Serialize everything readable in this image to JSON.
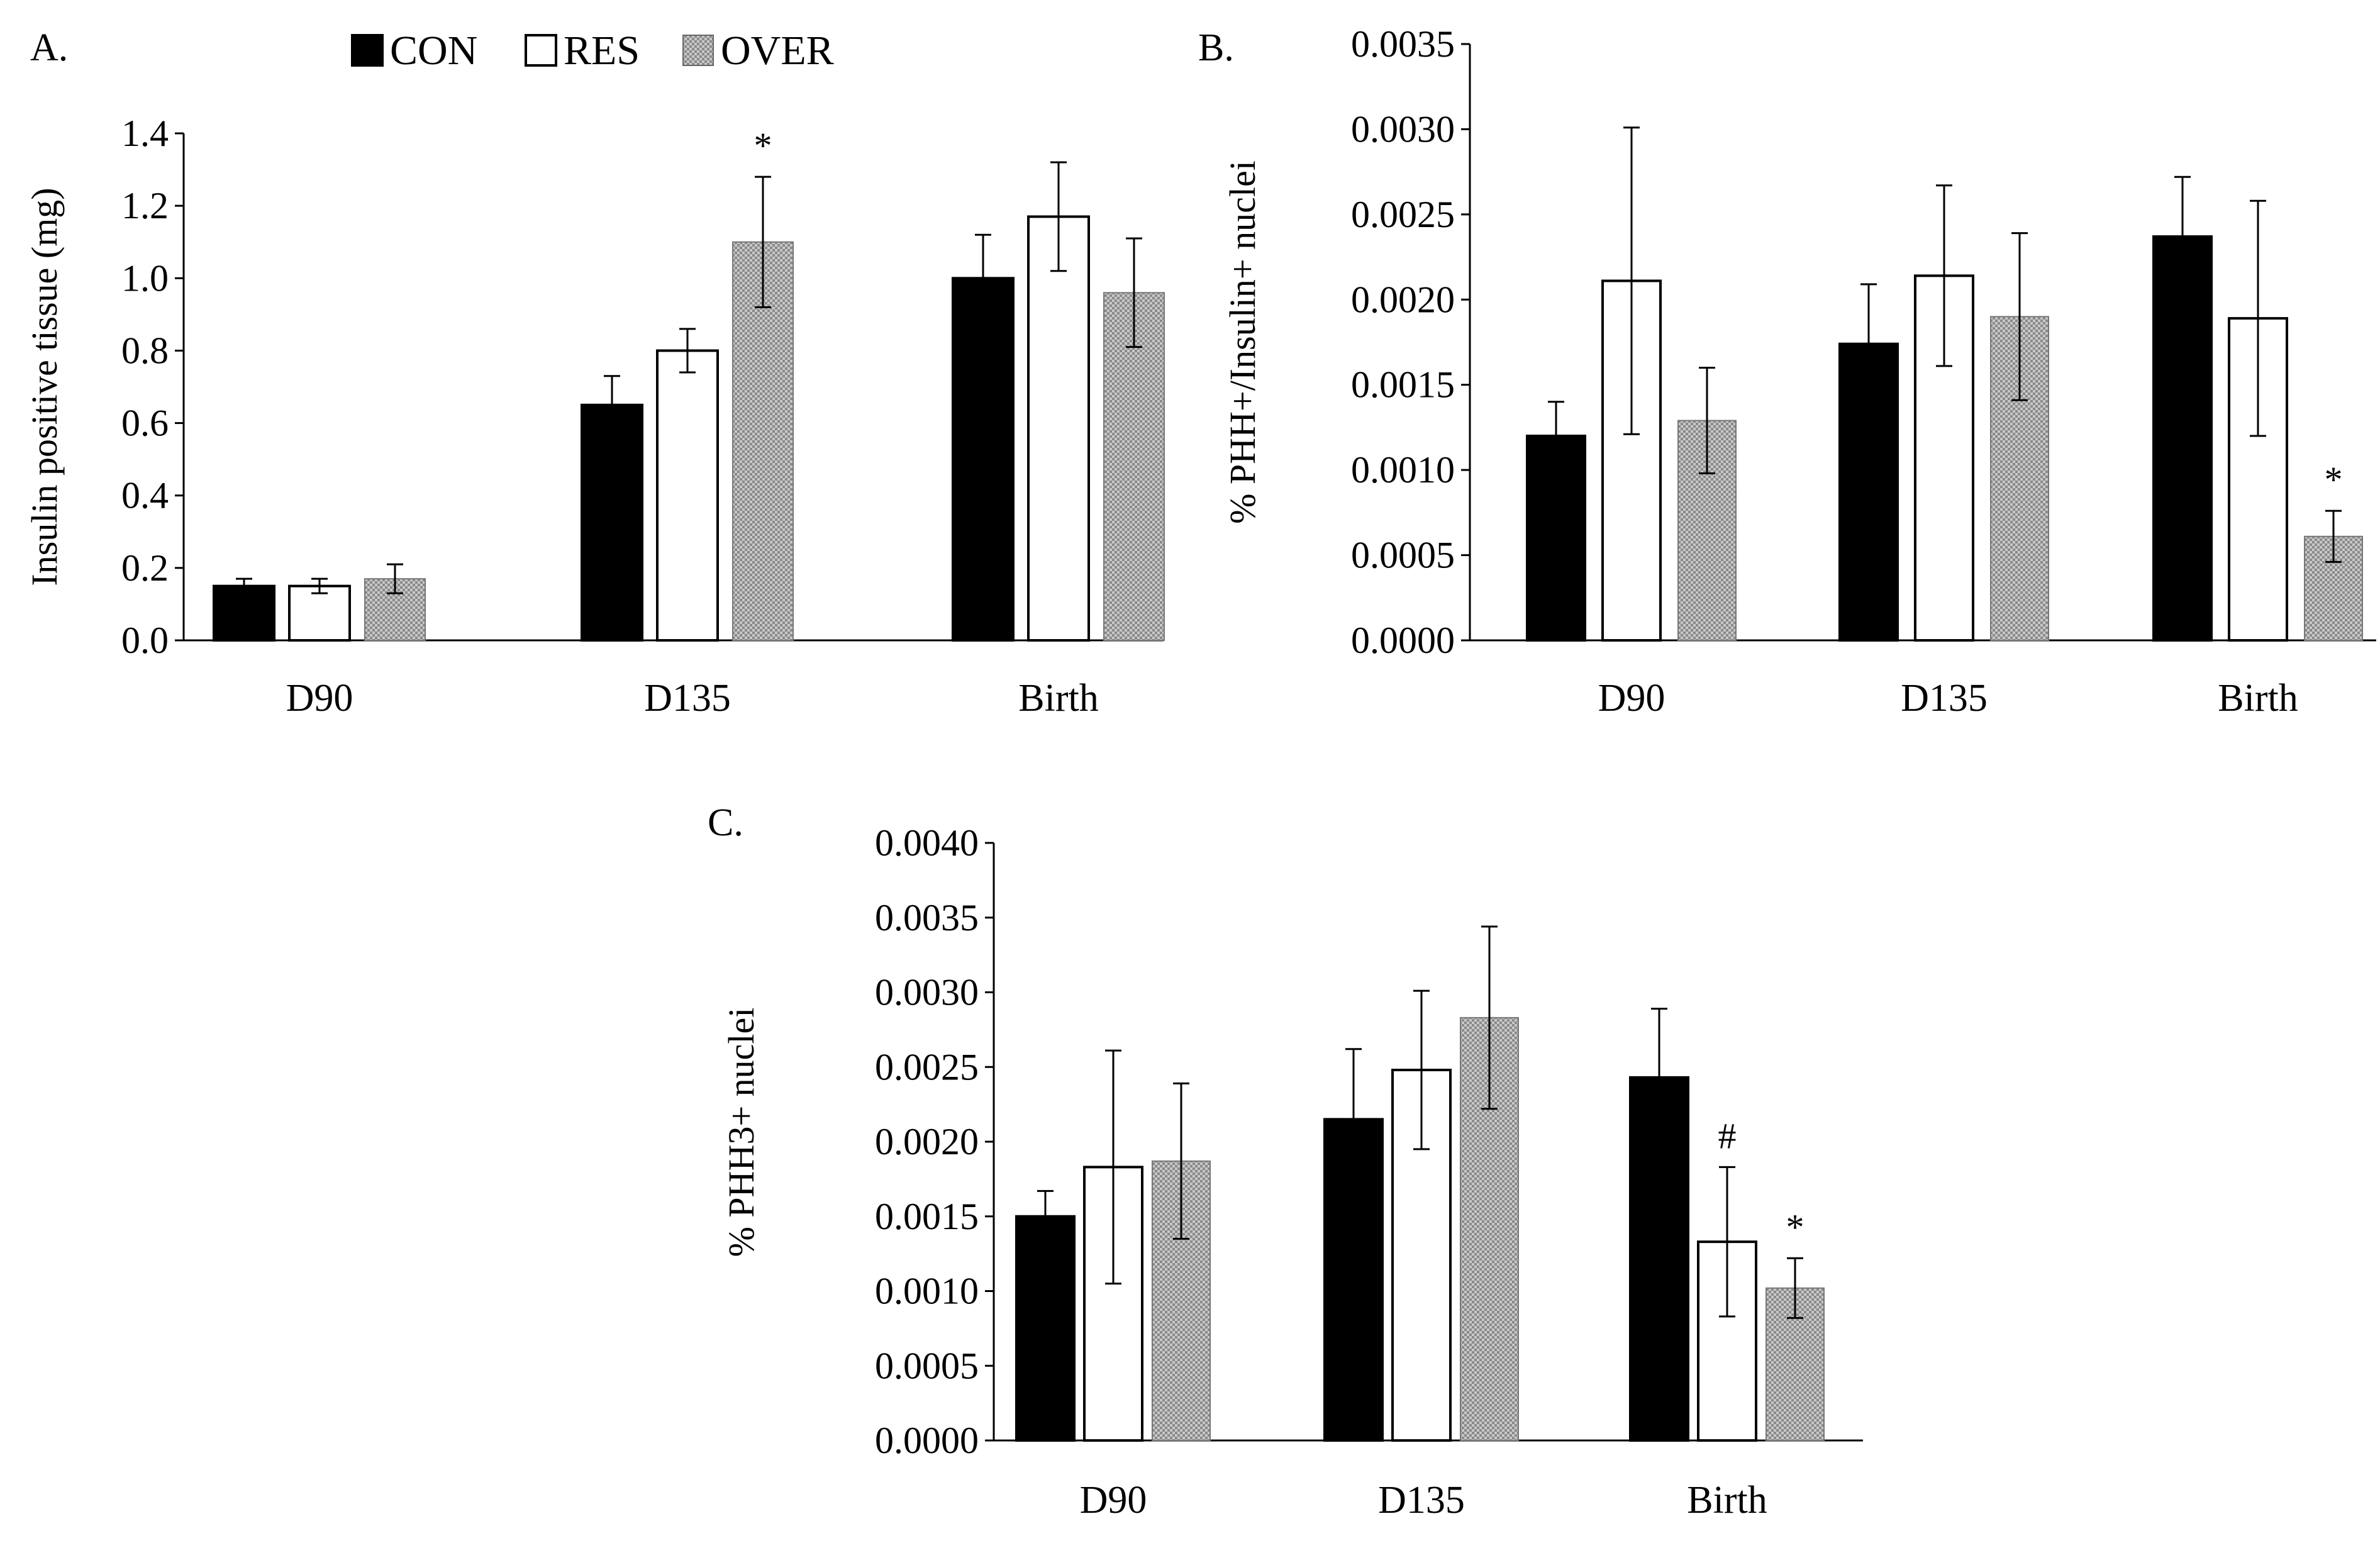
{
  "legend": {
    "items": [
      {
        "label": "CON",
        "key": "con"
      },
      {
        "label": "RES",
        "key": "res"
      },
      {
        "label": "OVER",
        "key": "over"
      }
    ]
  },
  "colors": {
    "con": "#000000",
    "res": "#ffffff",
    "over": "#b3b3b3",
    "axis": "#000000"
  },
  "chart_data": [
    {
      "id": "A",
      "panel_label": "A.",
      "type": "bar",
      "ylabel": "Insulin positive tissue (mg)",
      "ylim": [
        0,
        1.4
      ],
      "yticks": [
        "0.0",
        "0.2",
        "0.4",
        "0.6",
        "0.8",
        "1.0",
        "1.2",
        "1.4"
      ],
      "categories": [
        "D90",
        "D135",
        "Birth"
      ],
      "series": [
        {
          "name": "CON",
          "key": "con",
          "values": [
            0.15,
            0.65,
            1.0
          ],
          "errors": [
            0.02,
            0.08,
            0.12
          ]
        },
        {
          "name": "RES",
          "key": "res",
          "values": [
            0.15,
            0.8,
            1.17
          ],
          "errors": [
            0.02,
            0.06,
            0.15
          ]
        },
        {
          "name": "OVER",
          "key": "over",
          "values": [
            0.17,
            1.1,
            0.96
          ],
          "errors": [
            0.04,
            0.18,
            0.15
          ]
        }
      ],
      "annotations": [
        {
          "text": "*",
          "category": 1,
          "series": 2
        }
      ]
    },
    {
      "id": "B",
      "panel_label": "B.",
      "type": "bar",
      "ylabel": "% PHH+/Insulin+ nuclei",
      "ylim": [
        0,
        0.0035
      ],
      "yticks": [
        "0.0000",
        "0.0005",
        "0.0010",
        "0.0015",
        "0.0020",
        "0.0025",
        "0.0030",
        "0.0035"
      ],
      "categories": [
        "D90",
        "D135",
        "Birth"
      ],
      "series": [
        {
          "name": "CON",
          "key": "con",
          "values": [
            0.0012,
            0.00174,
            0.00237
          ],
          "errors": [
            0.0002,
            0.00035,
            0.00035
          ]
        },
        {
          "name": "RES",
          "key": "res",
          "values": [
            0.00211,
            0.00214,
            0.00189
          ],
          "errors": [
            0.0009,
            0.00053,
            0.00069
          ]
        },
        {
          "name": "OVER",
          "key": "over",
          "values": [
            0.00129,
            0.0019,
            0.00061
          ],
          "errors": [
            0.00031,
            0.00049,
            0.00015
          ]
        }
      ],
      "annotations": [
        {
          "text": "*",
          "category": 2,
          "series": 2
        }
      ]
    },
    {
      "id": "C",
      "panel_label": "C.",
      "type": "bar",
      "ylabel": "% PHH3+ nuclei",
      "ylim": [
        0,
        0.004
      ],
      "yticks": [
        "0.0000",
        "0.0005",
        "0.0010",
        "0.0015",
        "0.0020",
        "0.0025",
        "0.0030",
        "0.0035",
        "0.0040"
      ],
      "categories": [
        "D90",
        "D135",
        "Birth"
      ],
      "series": [
        {
          "name": "CON",
          "key": "con",
          "values": [
            0.0015,
            0.00215,
            0.00243
          ],
          "errors": [
            0.00017,
            0.00047,
            0.00046
          ]
        },
        {
          "name": "RES",
          "key": "res",
          "values": [
            0.00183,
            0.00248,
            0.00133
          ],
          "errors": [
            0.00078,
            0.00053,
            0.0005
          ]
        },
        {
          "name": "OVER",
          "key": "over",
          "values": [
            0.00187,
            0.00283,
            0.00102
          ],
          "errors": [
            0.00052,
            0.00061,
            0.0002
          ]
        }
      ],
      "annotations": [
        {
          "text": "#",
          "category": 2,
          "series": 1
        },
        {
          "text": "*",
          "category": 2,
          "series": 2
        }
      ]
    }
  ]
}
